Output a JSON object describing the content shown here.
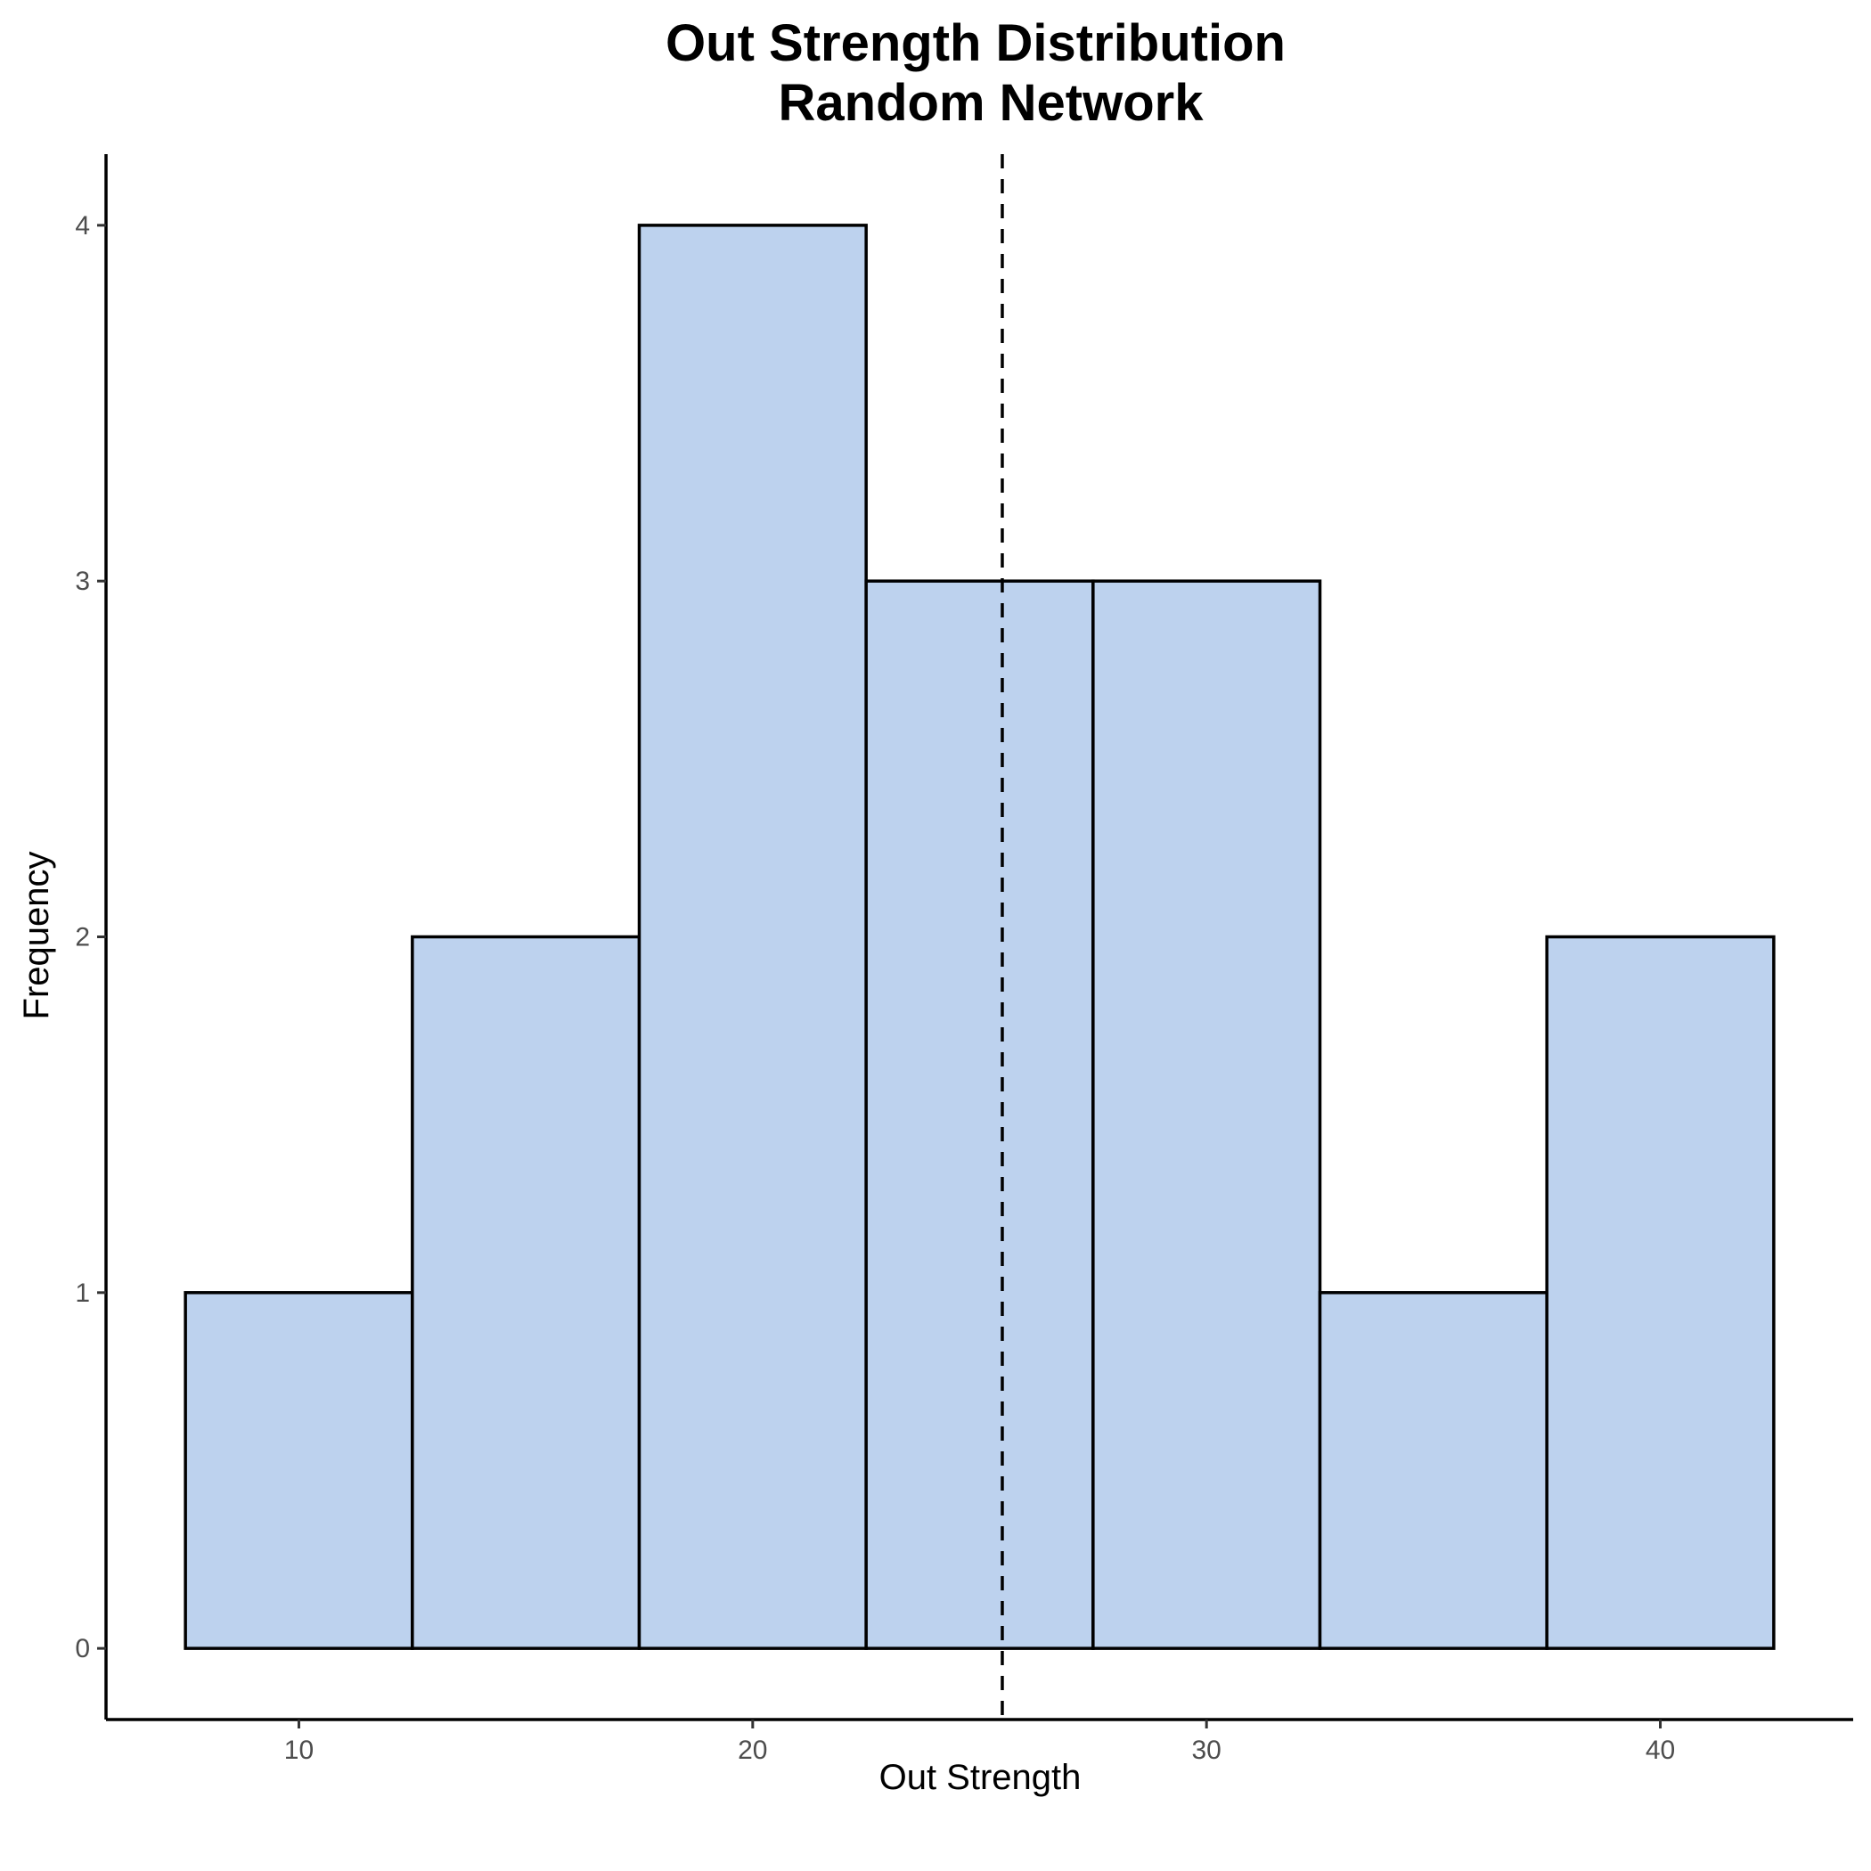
{
  "chart_data": {
    "type": "bar",
    "title": "Out Strength Distribution",
    "subtitle": "Random Network",
    "xlabel": "Out Strength",
    "ylabel": "Frequency",
    "bins": [
      {
        "start": 7.5,
        "end": 12.5,
        "count": 1
      },
      {
        "start": 12.5,
        "end": 17.5,
        "count": 2
      },
      {
        "start": 17.5,
        "end": 22.5,
        "count": 4
      },
      {
        "start": 22.5,
        "end": 27.5,
        "count": 3
      },
      {
        "start": 27.5,
        "end": 32.5,
        "count": 3
      },
      {
        "start": 32.5,
        "end": 37.5,
        "count": 1
      },
      {
        "start": 37.5,
        "end": 42.5,
        "count": 2
      }
    ],
    "mean_line_x": 25.5,
    "xlim": [
      5.75,
      44.25
    ],
    "ylim": [
      -0.2,
      4.2
    ],
    "xticks": [
      10,
      20,
      30,
      40
    ],
    "yticks": [
      0,
      1,
      2,
      3,
      4
    ],
    "grid": false,
    "legend": "none",
    "colors": {
      "bar_fill": "#bdd2ee",
      "bar_outline": "#000000",
      "mean_line": "#000000"
    }
  }
}
